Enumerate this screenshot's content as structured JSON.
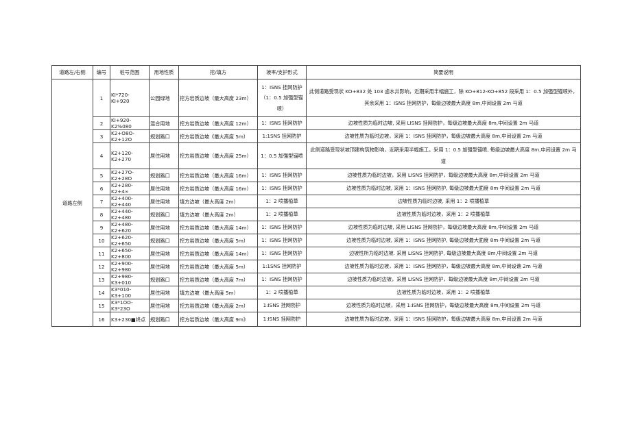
{
  "table": {
    "headers": [
      "道路左/右侧",
      "编号",
      "桩号范围",
      "用地性质",
      "挖/填方",
      "坡率/支护形式",
      "简要说明"
    ],
    "side_label": "道路左侧",
    "rows": [
      {
        "no": "1",
        "range": "KI*720-KI+920",
        "land": "公园绿地",
        "fill": "挖方岩质边坡（最大高度 23m）",
        "support": "1：ISNS 挂网防护（1：0.5 加强型锚喷）",
        "desc": "此侧道路受现状 KO+832 处 103 卤水井影响，近期采用半幅施工，除 KO+812-KO+852 段采用 1：0.5 加强型锚喷外，其余采用 1：ISNS 挂网防护，每级边坡最大高度 8m,中间设置 2m 马道"
      },
      {
        "no": "2",
        "range": "KI+920-K2%080",
        "land": "混合用地",
        "fill": "挖方岩质边坡（最大高度 12m）",
        "support": "1：ISNS 挂网防护",
        "desc": "边坡性质为临时边坡, 采用 LISNS 挂网防护，每级边坡最大高度 8m,中间设置 2m 马道"
      },
      {
        "no": "3",
        "range": "K2+O8O-K2+12O",
        "land": "规划路口",
        "fill": "挖方岩质边坡《最大高度 5m）",
        "support": "1:1SNS 挂网防护",
        "desc": "边坡性质为临时边坡，采用 1：ISNS 挂网防护，每级边坡最大高度 8m,中间设置 2m 马道"
      },
      {
        "no": "4",
        "range": "K2+120-K2+270",
        "land": "居住用地",
        "fill": "挖方岩质边坡（最大高度 25m）",
        "support": "1：0.5 加强型锚喷",
        "desc": "此侧道路受现状坡顶建构筑物影响，近期采用半幅施工。采用 1：0.5 加强型锚喷, 每级边坡最大高度 8m,中间设置 2m 马道"
      },
      {
        "no": "5",
        "range": "K2+27O-K2+28O",
        "land": "规划路口",
        "fill": "挖方岩质边坡（最大高度 16m）",
        "support": "1：ISNS 挂网防护",
        "desc": "边坡性质为临时边坡，采用 LISNS 挂网防护，每级边坡最大高度 8m,中间设置 2m 马道"
      },
      {
        "no": "6",
        "range": "K2+280-K2+4∞",
        "land": "居住用地",
        "fill": "挖方岩质边坡（最大高度 16m）",
        "support": "1：ISNS 挂网防护",
        "desc": "边坡性质为临时边坡, 采用 1：ISNS 挂网防护, 每级边坡最大面度 8m·中间设置 2m 马道"
      },
      {
        "no": "7",
        "range": "K2+400-K2+440",
        "land": "居住用地",
        "fill": "填方边坡（最大高度 2m）",
        "support": "1：2 喷播植草",
        "desc": "边坡性质为临时边坡, 采用 1：2 喷播植草"
      },
      {
        "no": "8",
        "range": "K2+440-K2+480",
        "land": "规划路口",
        "fill": "填方边坡（最大高度 2m）",
        "support": "1：2 喷播植草",
        "desc": "边坡性质为临时边坡，采用 1：2 喷播植草"
      },
      {
        "no": "9",
        "range": "K2+480-K2+620",
        "land": "居住用地",
        "fill": "挖方岩质边坡（最大高度 14m）",
        "support": "1：ISNS 挂网防护",
        "desc": "边坡性质为临时边坡, 采用 LISNS 挂网防护，每级边坡最大高度 8m,中间设置 2m 马道"
      },
      {
        "no": "10",
        "range": "K2+620-K2+650",
        "land": "规划路口",
        "fill": "挖方岩质边坡（最大高度 5m）",
        "support": "1：ISNS 挂网防护",
        "desc": "边坡性质为临时边坡, 采用 1：ISNS 挂网防护, 每级边坡最大面度 8m·中间设置 2m 马道"
      },
      {
        "no": "11",
        "range": "K2+650-K2+800",
        "land": "居住用地",
        "fill": "挖方岩质边坡（最大高度 14m）",
        "support": "1：ISNS 挂网防护",
        "desc": "边坡性所为临时边坡. 采用 LISNS 挂网防护, 每级边坡最大高度 8m,中间设置 2m 马道"
      },
      {
        "no": "12",
        "range": "K2+900-K2+980",
        "land": "居住用地",
        "fill": "挖方岩质边坡（最大高度 5m）",
        "support": "1:1SNS 挂网防护",
        "desc": "边坡性质为临时边坡，采用 1：ISNS 挂网防护，每级边坡最大高度 8m,中间设谯 2m 马道"
      },
      {
        "no": "13",
        "range": "K2+980-K3+010",
        "land": "规划路口",
        "fill": "挖方岩质边坡（最大高度 7m）",
        "support": "1：ISNS 挂网防护",
        "desc": "边坡性质为临时边坡，采用 LISNS 挂网防护，每级边坡最大高度 8m,中间设置 2m 马道"
      },
      {
        "no": "14",
        "range": "K3*010-K3+100",
        "land": "居住用地",
        "fill": "填方边坡（最大高度 5m）",
        "support": "1：2 喷播植草",
        "desc": "边坡性质为临时边坡，采用 1：2 喷播植草"
      },
      {
        "no": "15",
        "range": "K3*1OO-K3*23O",
        "land": "居住用地",
        "fill": "挖方岩质边坡《最大高度 2m）",
        "support": "1:ISNS 挂网防护",
        "desc": "边坡性质为临时边坡，采用 1:ISNS 挂网防护，每级边坡最大高度 8m,中间设置 2m 马道"
      },
      {
        "no": "16",
        "range": "K3+230■终点",
        "land": "规划路口",
        "fill": "挖方岩质边坡（最大高度 9m》",
        "support": "1:ISNS 挂网防护",
        "desc": "边坡性质为临时边坡，采用 1：ISNS 挂网防护，每级边坡最大高度 8m,中间设置 2m 马道"
      }
    ]
  }
}
